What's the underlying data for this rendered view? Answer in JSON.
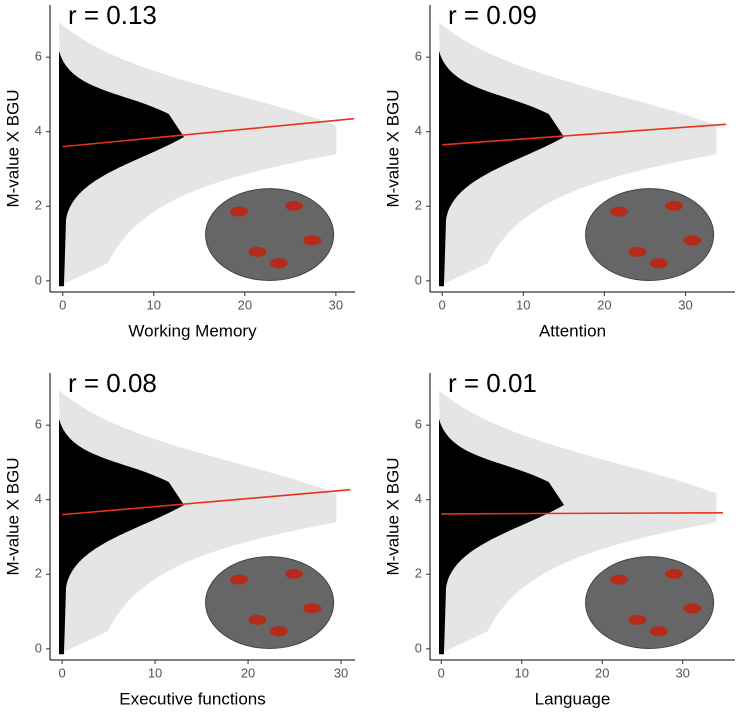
{
  "chart_data": [
    {
      "type": "line",
      "title": "r = 0.13",
      "xlabel": "Working Memory",
      "ylabel": "M-value X BGU",
      "xlim": [
        -1.4,
        32.1
      ],
      "ylim": [
        -0.3,
        7.4
      ],
      "xticks": [
        0,
        10,
        20,
        30
      ],
      "yticks": [
        0,
        2,
        4,
        6
      ],
      "series": [
        {
          "color": "#e8321e",
          "x": [
            0,
            32
          ],
          "values": [
            3.6,
            4.35
          ]
        }
      ]
    },
    {
      "type": "line",
      "title": "r = 0.09",
      "xlabel": "Attention",
      "ylabel": "M-value X BGU",
      "xlim": [
        -1.5,
        36.1
      ],
      "ylim": [
        -0.3,
        7.4
      ],
      "xticks": [
        0,
        10,
        20,
        30
      ],
      "yticks": [
        0,
        2,
        4,
        6
      ],
      "series": [
        {
          "color": "#e8321e",
          "x": [
            0,
            35
          ],
          "values": [
            3.65,
            4.2
          ]
        }
      ]
    },
    {
      "type": "line",
      "title": "r = 0.08",
      "xlabel": "Executive functions",
      "ylabel": "M-value X BGU",
      "xlim": [
        -1.3,
        31.5
      ],
      "ylim": [
        -0.3,
        7.4
      ],
      "xticks": [
        0,
        10,
        20,
        30
      ],
      "yticks": [
        0,
        2,
        4,
        6
      ],
      "series": [
        {
          "color": "#e8321e",
          "x": [
            0,
            31
          ],
          "values": [
            3.6,
            4.27
          ]
        }
      ]
    },
    {
      "type": "line",
      "title": "r = 0.01",
      "xlabel": "Language",
      "ylabel": "M-value X BGU",
      "xlim": [
        -1.4,
        36.5
      ],
      "ylim": [
        -0.3,
        7.4
      ],
      "xticks": [
        0,
        10,
        20,
        30
      ],
      "yticks": [
        0,
        2,
        4,
        6
      ],
      "series": [
        {
          "color": "#e8321e",
          "x": [
            0,
            35
          ],
          "values": [
            3.62,
            3.65
          ]
        }
      ]
    }
  ]
}
